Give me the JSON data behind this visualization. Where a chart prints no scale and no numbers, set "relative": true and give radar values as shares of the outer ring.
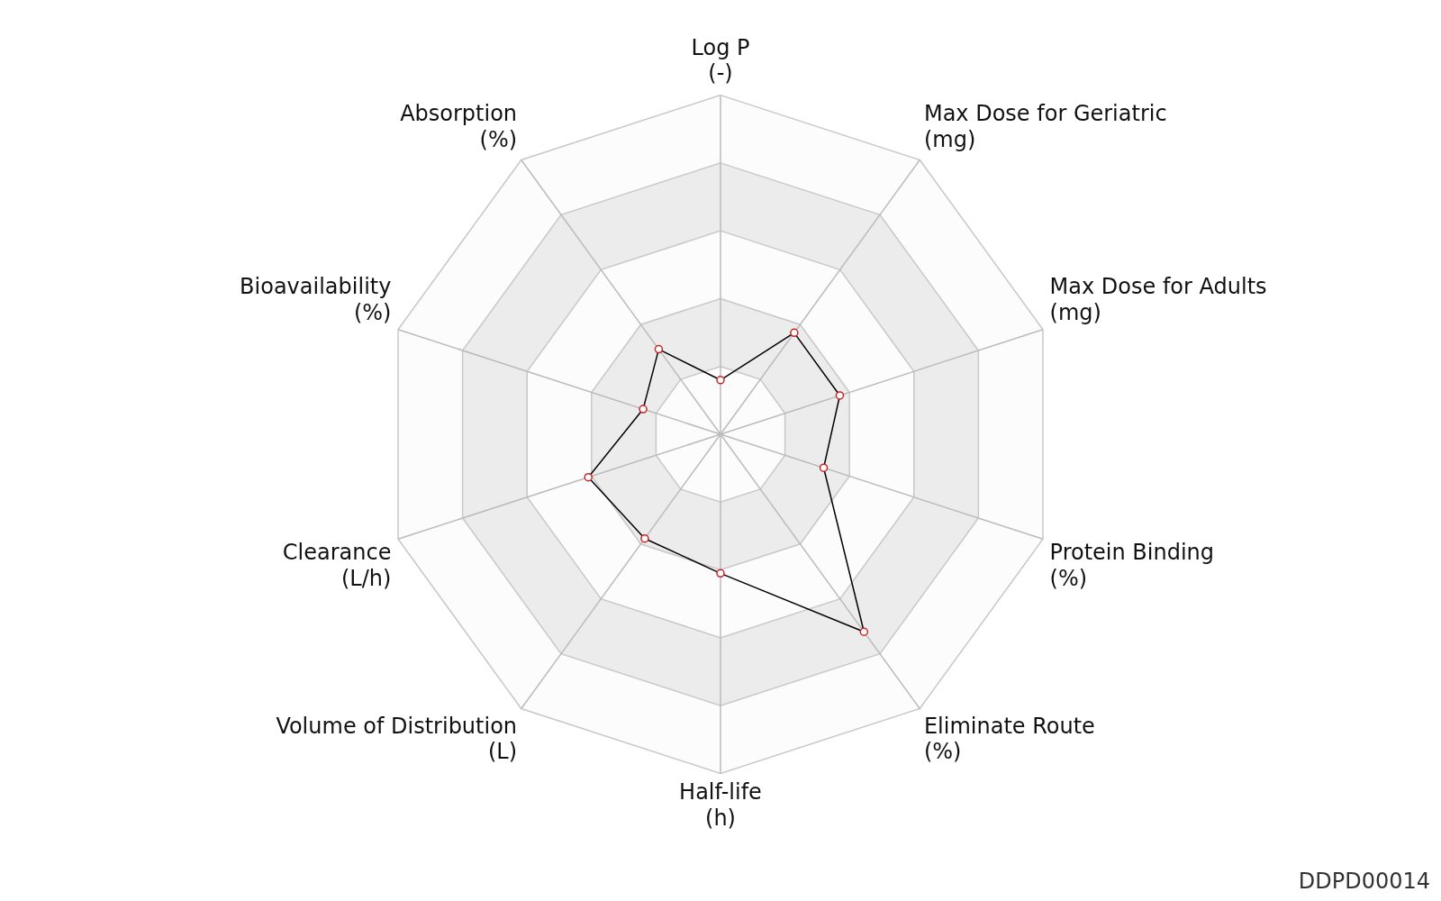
{
  "chart_data": {
    "type": "radar",
    "relative": true,
    "categories": [
      "Log P\n(-)",
      "Max Dose for Geriatric\n(mg)",
      "Max Dose for Adults\n(mg)",
      "Protein Binding\n(%)",
      "Eliminate Route\n(%)",
      "Half-life\n(h)",
      "Volume of Distribution\n(L)",
      "Clearance\n(L/h)",
      "Bioavailability\n(%)",
      "Absorption\n(%)"
    ],
    "series": [
      {
        "color": "#000000",
        "values": [
          0.16,
          0.37,
          0.37,
          0.32,
          0.72,
          0.41,
          0.38,
          0.41,
          0.24,
          0.31
        ]
      }
    ],
    "marker": "circle",
    "legend": false,
    "annotations": [
      "DDPD00014"
    ]
  }
}
